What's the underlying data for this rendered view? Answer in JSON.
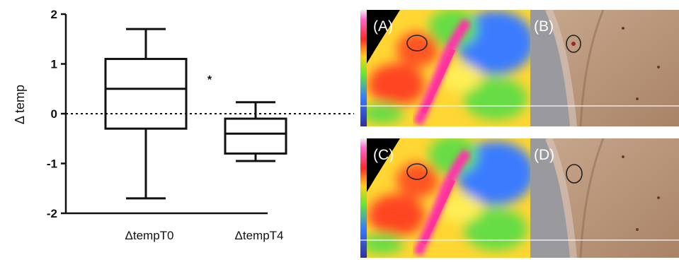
{
  "chart_data": {
    "type": "box",
    "xlabel": "",
    "ylabel": "Δ temp",
    "ylim": [
      -2,
      2
    ],
    "yticks": [
      "2",
      "1",
      "0",
      "-1",
      "-2"
    ],
    "reference_line": 0,
    "categories": [
      "ΔtempT0",
      "ΔtempT4"
    ],
    "boxes": [
      {
        "category": "ΔtempT0",
        "min": -1.7,
        "q1": -0.3,
        "median": 0.5,
        "q3": 1.1,
        "max": 1.7
      },
      {
        "category": "ΔtempT4",
        "min": -0.95,
        "q1": -0.8,
        "median": -0.4,
        "q3": -0.1,
        "max": 0.23
      }
    ],
    "annotation": "*"
  },
  "panels": [
    {
      "label": "(A)",
      "kind": "thermal",
      "marker_color": "#222222"
    },
    {
      "label": "(B)",
      "kind": "photo",
      "marker_color": "#222222"
    },
    {
      "label": "(C)",
      "kind": "thermal",
      "marker_color": "#222222"
    },
    {
      "label": "(D)",
      "kind": "photo",
      "marker_color": "#222222"
    }
  ],
  "colors": {
    "line": "#111111",
    "panel_text": "#ffffff"
  }
}
